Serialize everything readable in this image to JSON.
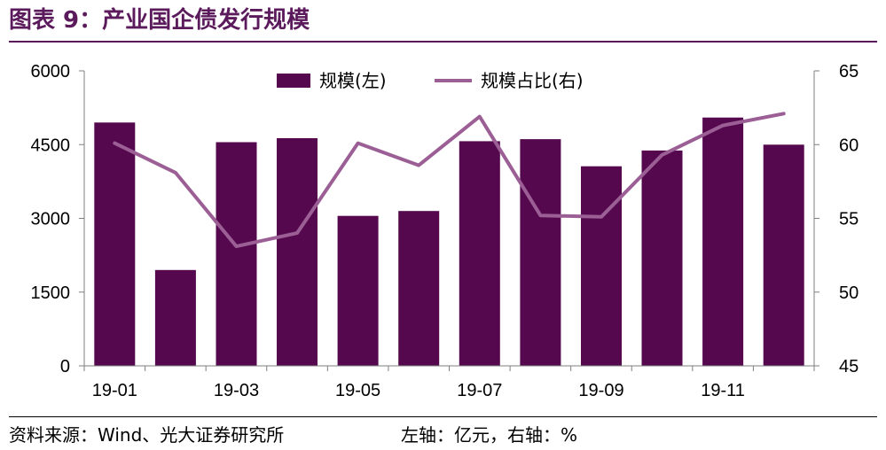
{
  "figure": {
    "title": "图表 9：产业国企债发行规模",
    "source": "资料来源：Wind、光大证券研究所",
    "unit_note": "左轴：亿元，右轴：%"
  },
  "colors": {
    "title": "#5b1a5b",
    "bar": "#55084e",
    "line": "#9b5f96",
    "axis": "#7f7f7f"
  },
  "chart_data": {
    "type": "bar+line",
    "categories": [
      "19-01",
      "19-02",
      "19-03",
      "19-04",
      "19-05",
      "19-06",
      "19-07",
      "19-08",
      "19-09",
      "19-10",
      "19-11",
      "19-12"
    ],
    "x_tick_labels": [
      "19-01",
      "19-03",
      "19-05",
      "19-07",
      "19-09",
      "19-11"
    ],
    "series": [
      {
        "name": "规模(左)",
        "type": "bar",
        "axis": "left",
        "values": [
          4950,
          1950,
          4550,
          4630,
          3050,
          3150,
          4570,
          4610,
          4060,
          4380,
          5050,
          4500
        ]
      },
      {
        "name": "规模占比(右)",
        "type": "line",
        "axis": "right",
        "values": [
          60.1,
          58.1,
          53.1,
          54.0,
          60.1,
          58.6,
          61.9,
          55.2,
          55.1,
          59.3,
          61.3,
          62.1
        ]
      }
    ],
    "y_left": {
      "ylim": [
        0,
        6000
      ],
      "ticks": [
        0,
        1500,
        3000,
        4500,
        6000
      ]
    },
    "y_right": {
      "ylim": [
        45,
        65
      ],
      "ticks": [
        45,
        50,
        55,
        60,
        65
      ]
    },
    "legend_position": "top-center",
    "grid": false
  }
}
